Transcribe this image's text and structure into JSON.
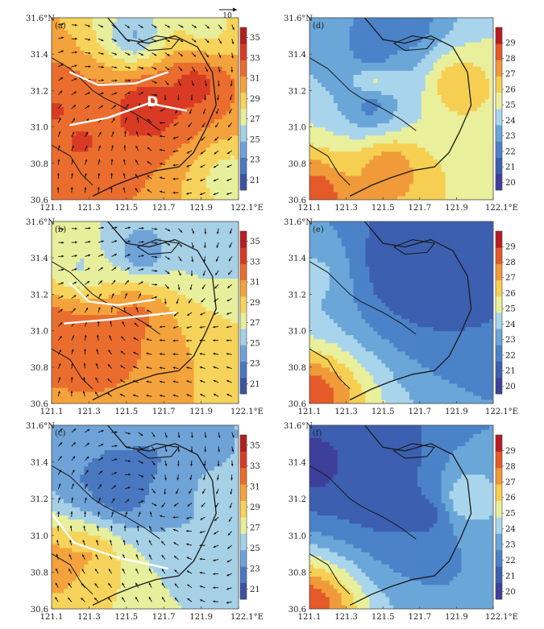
{
  "chart_data": [
    {
      "type": "heatmap",
      "panel_label": "(a)",
      "field": "temperature_with_wind",
      "x": [
        121.1,
        121.3,
        121.5,
        121.7,
        121.9,
        122.1
      ],
      "y": [
        30.6,
        30.8,
        31.0,
        31.2,
        31.4,
        31.6
      ],
      "xticklabels": [
        "121.1",
        "121.3",
        "121.5",
        "121.7",
        "121.9",
        "122.1°E"
      ],
      "yticklabels": [
        "30.6",
        "30.8",
        "31.0",
        "31.2",
        "31.4",
        "31.6°N"
      ],
      "colorbar": {
        "min": 20,
        "max": 36,
        "ticks": [
          21,
          23,
          25,
          27,
          29,
          31,
          33,
          35
        ]
      },
      "hot_spots": [
        {
          "lon": 121.62,
          "lat": 31.12,
          "value": 35
        },
        {
          "lon": 121.12,
          "lat": 31.1,
          "value": 33
        },
        {
          "lon": 121.26,
          "lat": 30.92,
          "value": 33
        },
        {
          "lon": 121.86,
          "lat": 31.24,
          "value": 34
        }
      ],
      "cool_spots": [
        {
          "lon": 121.55,
          "lat": 31.5,
          "value": 24
        },
        {
          "lon": 121.92,
          "lat": 31.55,
          "value": 27
        },
        {
          "lon": 122.05,
          "lat": 30.72,
          "value": 27
        }
      ],
      "annotations": [
        {
          "text": "D",
          "lon": 121.64,
          "lat": 31.14
        }
      ],
      "white_lines": [
        [
          [
            121.2,
            31.3
          ],
          [
            121.35,
            31.23
          ],
          [
            121.55,
            31.24
          ],
          [
            121.72,
            31.3
          ]
        ],
        [
          [
            121.2,
            31.01
          ],
          [
            121.4,
            31.05
          ],
          [
            121.62,
            31.13
          ],
          [
            121.82,
            31.09
          ]
        ]
      ],
      "wind_reference": {
        "label": "10",
        "value": 10
      }
    },
    {
      "type": "heatmap",
      "panel_label": "(d)",
      "field": "temperature",
      "x": [
        121.1,
        121.3,
        121.5,
        121.7,
        121.9,
        122.1
      ],
      "y": [
        30.6,
        30.8,
        31.0,
        31.2,
        31.4,
        31.6
      ],
      "xticklabels": [
        "121.1",
        "121.3",
        "121.5",
        "121.7",
        "121.9",
        "122.1°E"
      ],
      "yticklabels": [
        "30.6",
        "30.8",
        "31.0",
        "31.2",
        "31.4",
        "31.6°N"
      ],
      "colorbar": {
        "min": 19.5,
        "max": 30,
        "ticks": [
          20,
          21,
          22,
          23,
          24,
          25,
          26,
          27,
          28,
          29
        ]
      },
      "hot_spots": [
        {
          "lon": 121.12,
          "lat": 30.62,
          "value": 29
        },
        {
          "lon": 121.53,
          "lat": 30.78,
          "value": 28
        },
        {
          "lon": 121.9,
          "lat": 31.24,
          "value": 27
        },
        {
          "lon": 121.46,
          "lat": 31.26,
          "value": 26
        }
      ],
      "cool_spots": [
        {
          "lon": 121.45,
          "lat": 31.4,
          "value": 21
        },
        {
          "lon": 121.62,
          "lat": 31.55,
          "value": 21.5
        },
        {
          "lon": 121.44,
          "lat": 31.13,
          "value": 21.5
        }
      ]
    },
    {
      "type": "heatmap",
      "panel_label": "(b)",
      "field": "temperature_with_wind",
      "x": [
        121.1,
        121.3,
        121.5,
        121.7,
        121.9,
        122.1
      ],
      "y": [
        30.6,
        30.8,
        31.0,
        31.2,
        31.4,
        31.6
      ],
      "xticklabels": [
        "121.1",
        "121.3",
        "121.5",
        "121.7",
        "121.9",
        "122.1°E"
      ],
      "yticklabels": [
        "30.6",
        "30.8",
        "31.0",
        "31.2",
        "31.4",
        "31.6°N"
      ],
      "colorbar": {
        "min": 20,
        "max": 36,
        "ticks": [
          21,
          23,
          25,
          27,
          29,
          31,
          33,
          35
        ]
      },
      "hot_spots": [
        {
          "lon": 121.12,
          "lat": 31.0,
          "value": 33
        },
        {
          "lon": 121.38,
          "lat": 30.95,
          "value": 33
        },
        {
          "lon": 121.55,
          "lat": 31.1,
          "value": 32
        }
      ],
      "cool_spots": [
        {
          "lon": 121.58,
          "lat": 31.43,
          "value": 23
        },
        {
          "lon": 121.95,
          "lat": 31.48,
          "value": 25
        },
        {
          "lon": 121.25,
          "lat": 31.35,
          "value": 26
        }
      ],
      "white_lines": [
        [
          [
            121.2,
            31.26
          ],
          [
            121.3,
            31.16
          ],
          [
            121.45,
            31.14
          ],
          [
            121.65,
            31.17
          ]
        ],
        [
          [
            121.17,
            31.04
          ],
          [
            121.4,
            31.06
          ],
          [
            121.58,
            31.08
          ],
          [
            121.76,
            31.1
          ]
        ]
      ]
    },
    {
      "type": "heatmap",
      "panel_label": "(e)",
      "field": "temperature",
      "x": [
        121.1,
        121.3,
        121.5,
        121.7,
        121.9,
        122.1
      ],
      "y": [
        30.6,
        30.8,
        31.0,
        31.2,
        31.4,
        31.6
      ],
      "xticklabels": [
        "121.1",
        "121.3",
        "121.5",
        "121.7",
        "121.9",
        "122.1°E"
      ],
      "yticklabels": [
        "30.6",
        "30.8",
        "31.0",
        "31.2",
        "31.4",
        "31.6°N"
      ],
      "colorbar": {
        "min": 19.5,
        "max": 30,
        "ticks": [
          20,
          21,
          22,
          23,
          24,
          25,
          26,
          27,
          28,
          29
        ]
      },
      "hot_spots": [
        {
          "lon": 121.1,
          "lat": 30.63,
          "value": 29
        },
        {
          "lon": 121.14,
          "lat": 31.3,
          "value": 24
        }
      ],
      "cool_spots": [
        {
          "lon": 121.6,
          "lat": 31.35,
          "value": 20.5
        },
        {
          "lon": 121.78,
          "lat": 31.35,
          "value": 20.5
        },
        {
          "lon": 121.7,
          "lat": 31.42,
          "value": 21
        }
      ]
    },
    {
      "type": "heatmap",
      "panel_label": "(c)",
      "field": "temperature_with_wind",
      "x": [
        121.1,
        121.3,
        121.5,
        121.7,
        121.9,
        122.1
      ],
      "y": [
        30.6,
        30.8,
        31.0,
        31.2,
        31.4,
        31.6
      ],
      "xticklabels": [
        "121.1",
        "121.3",
        "121.5",
        "121.7",
        "121.9",
        "122.1°E"
      ],
      "yticklabels": [
        "30.6",
        "30.8",
        "31.0",
        "31.2",
        "31.4",
        "31.6°N"
      ],
      "colorbar": {
        "min": 20,
        "max": 36,
        "ticks": [
          21,
          23,
          25,
          27,
          29,
          31,
          33,
          35
        ]
      },
      "hot_spots": [
        {
          "lon": 121.12,
          "lat": 30.85,
          "value": 31
        },
        {
          "lon": 121.3,
          "lat": 30.9,
          "value": 30
        }
      ],
      "cool_spots": [
        {
          "lon": 121.45,
          "lat": 31.25,
          "value": 21
        },
        {
          "lon": 121.3,
          "lat": 31.3,
          "value": 23
        },
        {
          "lon": 121.62,
          "lat": 31.4,
          "value": 23
        },
        {
          "lon": 121.95,
          "lat": 31.25,
          "value": 25
        }
      ],
      "white_lines": [
        [
          [
            121.1,
            31.12
          ],
          [
            121.22,
            30.96
          ],
          [
            121.45,
            30.88
          ],
          [
            121.72,
            30.82
          ]
        ]
      ]
    },
    {
      "type": "heatmap",
      "panel_label": "(f)",
      "field": "temperature",
      "x": [
        121.1,
        121.3,
        121.5,
        121.7,
        121.9,
        122.1
      ],
      "y": [
        30.6,
        30.8,
        31.0,
        31.2,
        31.4,
        31.6
      ],
      "xticklabels": [
        "121.1",
        "121.3",
        "121.5",
        "121.7",
        "121.9",
        "122.1°E"
      ],
      "yticklabels": [
        "30.6",
        "30.8",
        "31.0",
        "31.2",
        "31.4",
        "31.6°N"
      ],
      "colorbar": {
        "min": 19.5,
        "max": 30,
        "ticks": [
          20,
          21,
          22,
          23,
          24,
          25,
          26,
          27,
          28,
          29
        ]
      },
      "hot_spots": [
        {
          "lon": 121.1,
          "lat": 30.62,
          "value": 29
        },
        {
          "lon": 121.94,
          "lat": 31.2,
          "value": 25
        }
      ],
      "cool_spots": [
        {
          "lon": 121.13,
          "lat": 31.38,
          "value": 20
        },
        {
          "lon": 121.5,
          "lat": 31.25,
          "value": 20.5
        },
        {
          "lon": 121.45,
          "lat": 31.45,
          "value": 20.5
        },
        {
          "lon": 121.75,
          "lat": 31.12,
          "value": 21
        }
      ]
    }
  ],
  "palettes": {
    "panel_warm": [
      "#3b52a4",
      "#4a78c0",
      "#6fa3d8",
      "#a6d0e6",
      "#e8ef9c",
      "#f6d35a",
      "#f4a23c",
      "#ea6d2e",
      "#d93a24",
      "#b31f1f"
    ],
    "panel_cool": [
      "#3d3f9a",
      "#3c5fb0",
      "#4b82c8",
      "#6aa6d8",
      "#a9d5ec",
      "#e9ef9a",
      "#f6cf52",
      "#f09a3a",
      "#e45a28",
      "#b81c22"
    ]
  }
}
